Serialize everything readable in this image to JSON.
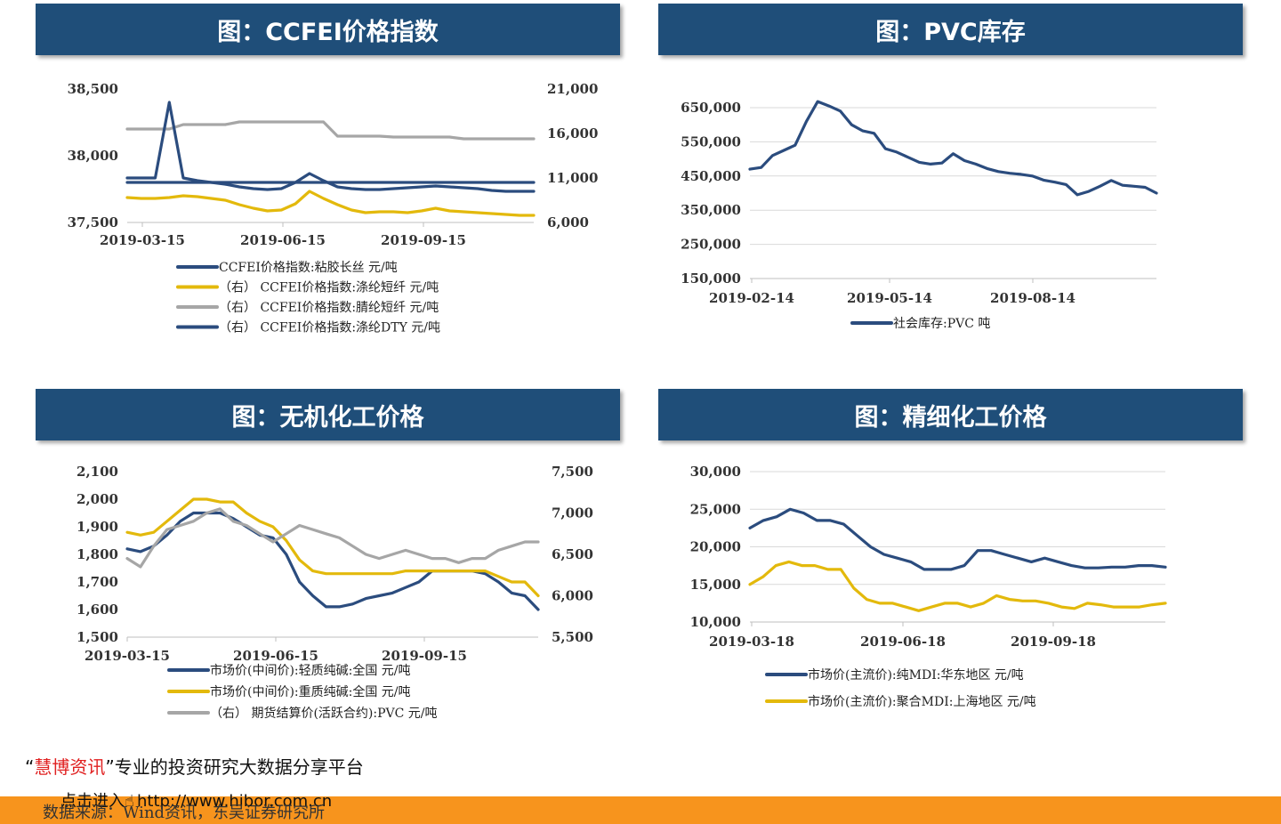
{
  "panels": [
    {
      "title": "图：CCFEI价格指数"
    },
    {
      "title": "图：PVC库存"
    },
    {
      "title": "图：无机化工价格"
    },
    {
      "title": "图：精细化工价格"
    }
  ],
  "chart_data": [
    {
      "type": "line",
      "x_ticks": [
        "2019-03-15",
        "2019-06-15",
        "2019-09-15"
      ],
      "y_left_ticks": [
        "38,500",
        "38,000",
        "37,500"
      ],
      "y_right_ticks": [
        "21,000",
        "16,000",
        "11,000",
        "6,000"
      ],
      "ylim_left": [
        37500,
        38500
      ],
      "ylim_right": [
        6000,
        21000
      ],
      "legend_position": "bottom",
      "series": [
        {
          "name": "CCFEI价格指数:粘胶长丝  元/吨",
          "axis": "left",
          "color": "#2b4c7e",
          "values": [
            37800,
            37800,
            37800,
            37800,
            37800,
            37800,
            37800,
            37800,
            37800,
            37800,
            37800,
            37800,
            37800,
            37800,
            37800,
            37800,
            37800,
            37800,
            37800,
            37800,
            37800,
            37800,
            37800,
            37800,
            37800,
            37800,
            37800,
            37800,
            37800,
            37800,
            37800,
            37800,
            37800,
            37800,
            37800,
            37800,
            37800,
            37800,
            37800,
            37800,
            37800,
            37800,
            37800
          ]
        },
        {
          "name": "（右） CCFEI价格指数:涤纶短纤  元/吨",
          "axis": "right",
          "color": "#e3b90c",
          "values": [
            8800,
            8700,
            8700,
            8800,
            9000,
            8900,
            8700,
            8500,
            8000,
            7600,
            7300,
            7400,
            8100,
            9500,
            8700,
            8000,
            7400,
            7100,
            7200,
            7200,
            7100,
            7300,
            7600,
            7300,
            7200,
            7100,
            7000,
            6900,
            6800,
            6800
          ]
        },
        {
          "name": "（右） CCFEI价格指数:腈纶短纤  元/吨",
          "axis": "right",
          "color": "#a6a6a6",
          "values": [
            16500,
            16500,
            16500,
            16500,
            17000,
            17000,
            17000,
            17000,
            17300,
            17300,
            17300,
            17300,
            17300,
            17300,
            17300,
            15700,
            15700,
            15700,
            15700,
            15600,
            15600,
            15600,
            15600,
            15600,
            15400,
            15400,
            15400,
            15400,
            15400,
            15400
          ]
        },
        {
          "name": "（右） CCFEI价格指数:涤纶DTY  元/吨",
          "axis": "right",
          "color": "#2b4c7e",
          "values": [
            11000,
            11000,
            11000,
            19500,
            11000,
            10700,
            10500,
            10300,
            10000,
            9800,
            9700,
            9800,
            10500,
            11500,
            10700,
            10000,
            9800,
            9700,
            9700,
            9800,
            9900,
            10000,
            10100,
            10000,
            9900,
            9800,
            9600,
            9500,
            9500,
            9500
          ]
        }
      ]
    },
    {
      "type": "line",
      "x_ticks": [
        "2019-02-14",
        "2019-05-14",
        "2019-08-14"
      ],
      "y_ticks": [
        "650,000",
        "550,000",
        "450,000",
        "350,000",
        "250,000",
        "150,000"
      ],
      "ylim": [
        150000,
        650000
      ],
      "legend_position": "bottom",
      "series": [
        {
          "name": "社会库存:PVC  吨",
          "color": "#2b4c7e",
          "values": [
            470000,
            475000,
            510000,
            525000,
            540000,
            610000,
            668000,
            655000,
            640000,
            600000,
            582000,
            575000,
            530000,
            520000,
            505000,
            490000,
            485000,
            488000,
            515000,
            495000,
            485000,
            472000,
            463000,
            458000,
            455000,
            450000,
            438000,
            432000,
            425000,
            395000,
            405000,
            420000,
            437000,
            423000,
            420000,
            417000,
            400000
          ]
        }
      ]
    },
    {
      "type": "line",
      "x_ticks": [
        "2019-03-15",
        "2019-06-15",
        "2019-09-15"
      ],
      "y_left_ticks": [
        "2,100",
        "2,000",
        "1,900",
        "1,800",
        "1,700",
        "1,600",
        "1,500"
      ],
      "y_right_ticks": [
        "7,500",
        "7,000",
        "6,500",
        "6,000",
        "5,500"
      ],
      "ylim_left": [
        1500,
        2100
      ],
      "ylim_right": [
        5500,
        7500
      ],
      "legend_position": "bottom",
      "series": [
        {
          "name": "市场价(中间价):轻质纯碱:全国  元/吨",
          "axis": "left",
          "color": "#2b4c7e",
          "values": [
            1820,
            1810,
            1830,
            1870,
            1920,
            1950,
            1950,
            1950,
            1930,
            1900,
            1870,
            1860,
            1800,
            1700,
            1650,
            1610,
            1610,
            1620,
            1640,
            1650,
            1660,
            1680,
            1700,
            1740,
            1740,
            1740,
            1740,
            1730,
            1700,
            1660,
            1650,
            1600
          ]
        },
        {
          "name": "市场价(中间价):重质纯碱:全国  元/吨",
          "axis": "left",
          "color": "#e3b90c",
          "values": [
            1880,
            1870,
            1880,
            1920,
            1960,
            2000,
            2000,
            1990,
            1990,
            1950,
            1920,
            1900,
            1850,
            1780,
            1740,
            1730,
            1730,
            1730,
            1730,
            1730,
            1730,
            1740,
            1740,
            1740,
            1740,
            1740,
            1740,
            1740,
            1720,
            1700,
            1700,
            1650
          ]
        },
        {
          "name": "（右） 期货结算价(活跃合约):PVC  元/吨",
          "axis": "right",
          "color": "#a6a6a6",
          "values": [
            6450,
            6350,
            6600,
            6800,
            6850,
            6900,
            7000,
            7050,
            6900,
            6850,
            6750,
            6650,
            6750,
            6850,
            6800,
            6750,
            6700,
            6600,
            6500,
            6450,
            6500,
            6550,
            6500,
            6450,
            6450,
            6400,
            6450,
            6450,
            6550,
            6600,
            6650,
            6650
          ]
        }
      ]
    },
    {
      "type": "line",
      "x_ticks": [
        "2019-03-18",
        "2019-06-18",
        "2019-09-18"
      ],
      "y_ticks": [
        "30,000",
        "25,000",
        "20,000",
        "15,000",
        "10,000"
      ],
      "ylim": [
        10000,
        30000
      ],
      "legend_position": "bottom",
      "series": [
        {
          "name": "市场价(主流价):纯MDI:华东地区  元/吨",
          "color": "#2b4c7e",
          "values": [
            22500,
            23500,
            24000,
            25000,
            24500,
            23500,
            23500,
            23000,
            21500,
            20000,
            19000,
            18500,
            18000,
            17000,
            17000,
            17000,
            17500,
            19500,
            19500,
            19000,
            18500,
            18000,
            18500,
            18000,
            17500,
            17200,
            17200,
            17300,
            17300,
            17500,
            17500,
            17300
          ]
        },
        {
          "name": "市场价(主流价):聚合MDI:上海地区  元/吨",
          "color": "#e3b90c",
          "values": [
            15000,
            16000,
            17500,
            18000,
            17500,
            17500,
            17000,
            17000,
            14500,
            13000,
            12500,
            12500,
            12000,
            11500,
            12000,
            12500,
            12500,
            12000,
            12500,
            13500,
            13000,
            12800,
            12800,
            12500,
            12000,
            11800,
            12500,
            12300,
            12000,
            12000,
            12000,
            12300,
            12500
          ]
        }
      ]
    }
  ],
  "footer": {
    "brand_open": "“",
    "brand": "慧博资讯",
    "brand_close": "”",
    "slogan": "专业的投资研究大数据分享平台",
    "link_text": "点击进入",
    "link_url": "http://www.hibor.com.cn",
    "source": "数据来源：Wind资讯，东吴证券研究所",
    "colors": {
      "brand": "#e02020",
      "bar": "#f7941d"
    }
  }
}
